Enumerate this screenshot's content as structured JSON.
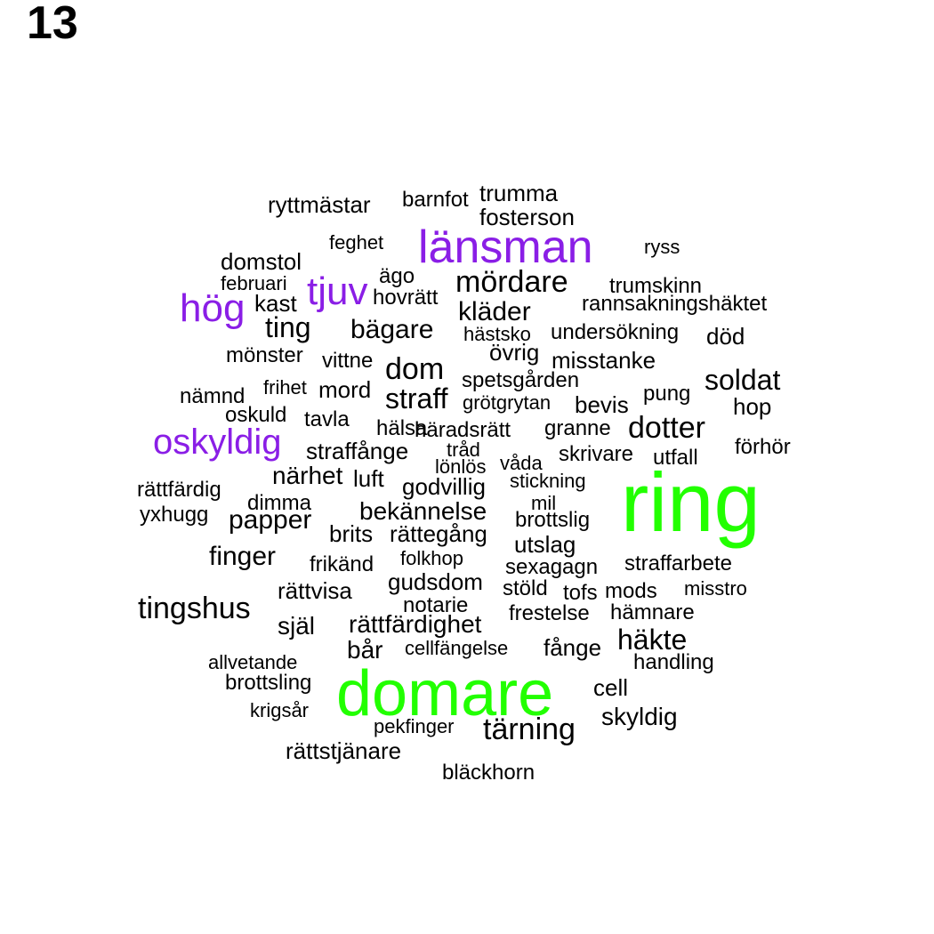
{
  "panel_label": "13",
  "colors": {
    "tier1": "#22ff00",
    "tier2": "#8a1ee6",
    "tier3": "#000000"
  },
  "words": [
    {
      "text": "ring",
      "tier": 1
    },
    {
      "text": "domare",
      "tier": 1
    },
    {
      "text": "länsman",
      "tier": 2
    },
    {
      "text": "hög",
      "tier": 2
    },
    {
      "text": "tjuv",
      "tier": 2
    },
    {
      "text": "oskyldig",
      "tier": 2
    },
    {
      "text": "trumma",
      "tier": 3
    },
    {
      "text": "ryttmästar",
      "tier": 3
    },
    {
      "text": "barnfot",
      "tier": 3
    },
    {
      "text": "fosterson",
      "tier": 3
    },
    {
      "text": "feghet",
      "tier": 3
    },
    {
      "text": "ryss",
      "tier": 3
    },
    {
      "text": "domstol",
      "tier": 3
    },
    {
      "text": "ägo",
      "tier": 3
    },
    {
      "text": "mördare",
      "tier": 3
    },
    {
      "text": "februari",
      "tier": 3
    },
    {
      "text": "trumskinn",
      "tier": 3
    },
    {
      "text": "kast",
      "tier": 3
    },
    {
      "text": "hovrätt",
      "tier": 3
    },
    {
      "text": "rannsakningshäktet",
      "tier": 3
    },
    {
      "text": "kläder",
      "tier": 3
    },
    {
      "text": "ting",
      "tier": 3
    },
    {
      "text": "bägare",
      "tier": 3
    },
    {
      "text": "hästsko",
      "tier": 3
    },
    {
      "text": "undersökning",
      "tier": 3
    },
    {
      "text": "död",
      "tier": 3
    },
    {
      "text": "övrig",
      "tier": 3
    },
    {
      "text": "mönster",
      "tier": 3
    },
    {
      "text": "vittne",
      "tier": 3
    },
    {
      "text": "dom",
      "tier": 3
    },
    {
      "text": "misstanke",
      "tier": 3
    },
    {
      "text": "spetsgården",
      "tier": 3
    },
    {
      "text": "soldat",
      "tier": 3
    },
    {
      "text": "nämnd",
      "tier": 3
    },
    {
      "text": "frihet",
      "tier": 3
    },
    {
      "text": "mord",
      "tier": 3
    },
    {
      "text": "straff",
      "tier": 3
    },
    {
      "text": "pung",
      "tier": 3
    },
    {
      "text": "grötgrytan",
      "tier": 3
    },
    {
      "text": "bevis",
      "tier": 3
    },
    {
      "text": "hop",
      "tier": 3
    },
    {
      "text": "oskuld",
      "tier": 3
    },
    {
      "text": "tavla",
      "tier": 3
    },
    {
      "text": "hälsa",
      "tier": 3
    },
    {
      "text": "häradsrätt",
      "tier": 3
    },
    {
      "text": "granne",
      "tier": 3
    },
    {
      "text": "dotter",
      "tier": 3
    },
    {
      "text": "förhör",
      "tier": 3
    },
    {
      "text": "straffånge",
      "tier": 3
    },
    {
      "text": "tråd",
      "tier": 3
    },
    {
      "text": "skrivare",
      "tier": 3
    },
    {
      "text": "utfall",
      "tier": 3
    },
    {
      "text": "lönlös",
      "tier": 3
    },
    {
      "text": "våda",
      "tier": 3
    },
    {
      "text": "närhet",
      "tier": 3
    },
    {
      "text": "luft",
      "tier": 3
    },
    {
      "text": "godvillig",
      "tier": 3
    },
    {
      "text": "stickning",
      "tier": 3
    },
    {
      "text": "rättfärdig",
      "tier": 3
    },
    {
      "text": "dimma",
      "tier": 3
    },
    {
      "text": "mil",
      "tier": 3
    },
    {
      "text": "yxhugg",
      "tier": 3
    },
    {
      "text": "papper",
      "tier": 3
    },
    {
      "text": "bekännelse",
      "tier": 3
    },
    {
      "text": "brottslig",
      "tier": 3
    },
    {
      "text": "brits",
      "tier": 3
    },
    {
      "text": "rättegång",
      "tier": 3
    },
    {
      "text": "utslag",
      "tier": 3
    },
    {
      "text": "finger",
      "tier": 3
    },
    {
      "text": "frikänd",
      "tier": 3
    },
    {
      "text": "folkhop",
      "tier": 3
    },
    {
      "text": "sexagagn",
      "tier": 3
    },
    {
      "text": "straffarbete",
      "tier": 3
    },
    {
      "text": "gudsdom",
      "tier": 3
    },
    {
      "text": "rättvisa",
      "tier": 3
    },
    {
      "text": "stöld",
      "tier": 3
    },
    {
      "text": "tofs",
      "tier": 3
    },
    {
      "text": "mods",
      "tier": 3
    },
    {
      "text": "misstro",
      "tier": 3
    },
    {
      "text": "tingshus",
      "tier": 3
    },
    {
      "text": "notarie",
      "tier": 3
    },
    {
      "text": "frestelse",
      "tier": 3
    },
    {
      "text": "hämnare",
      "tier": 3
    },
    {
      "text": "själ",
      "tier": 3
    },
    {
      "text": "rättfärdighet",
      "tier": 3
    },
    {
      "text": "häkte",
      "tier": 3
    },
    {
      "text": "bår",
      "tier": 3
    },
    {
      "text": "cellfängelse",
      "tier": 3
    },
    {
      "text": "fånge",
      "tier": 3
    },
    {
      "text": "allvetande",
      "tier": 3
    },
    {
      "text": "handling",
      "tier": 3
    },
    {
      "text": "brottsling",
      "tier": 3
    },
    {
      "text": "cell",
      "tier": 3
    },
    {
      "text": "krigsår",
      "tier": 3
    },
    {
      "text": "skyldig",
      "tier": 3
    },
    {
      "text": "pekfinger",
      "tier": 3
    },
    {
      "text": "tärning",
      "tier": 3
    },
    {
      "text": "rättstjänare",
      "tier": 3
    },
    {
      "text": "bläckhorn",
      "tier": 3
    }
  ]
}
